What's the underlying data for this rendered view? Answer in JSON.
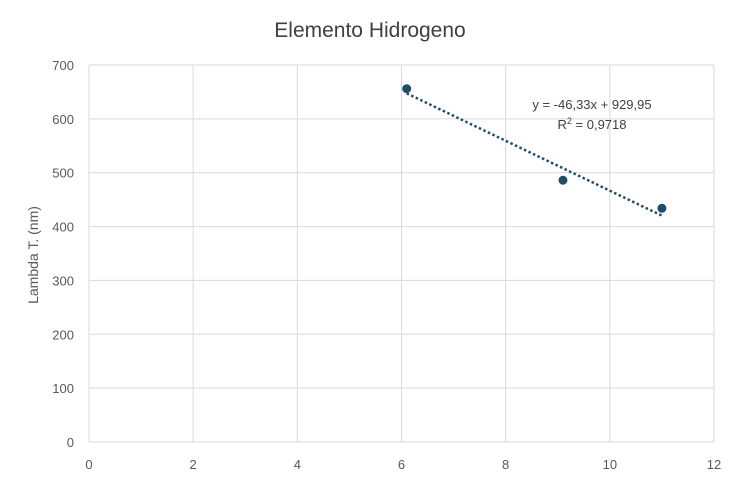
{
  "chart_data": {
    "type": "scatter",
    "title": "Elemento Hidrogeno",
    "xlabel": "",
    "ylabel": "Lambda T. (nm)",
    "xlim": [
      0,
      12
    ],
    "ylim": [
      0,
      700
    ],
    "xticks": [
      0,
      2,
      4,
      6,
      8,
      10,
      12
    ],
    "yticks": [
      0,
      100,
      200,
      300,
      400,
      500,
      600,
      700
    ],
    "grid": true,
    "legend": "none",
    "series": [
      {
        "points": [
          {
            "x": 6.1,
            "y": 656
          },
          {
            "x": 9.1,
            "y": 486
          },
          {
            "x": 11.0,
            "y": 434
          }
        ],
        "marker_color": "#1f4e66"
      }
    ],
    "trendline": {
      "type": "linear",
      "x_range": [
        6.1,
        11.0
      ],
      "slope": -46.33,
      "intercept": 929.95,
      "color": "#1f4e66",
      "equation_label": "y = -46,33x + 929,95",
      "r2_label_prefix": "R",
      "r2_label_sup": "2",
      "r2_label_value": " = 0,9718"
    },
    "colors": {
      "grid": "#d9d9d9",
      "axis_text": "#595959",
      "title": "#404040"
    }
  }
}
